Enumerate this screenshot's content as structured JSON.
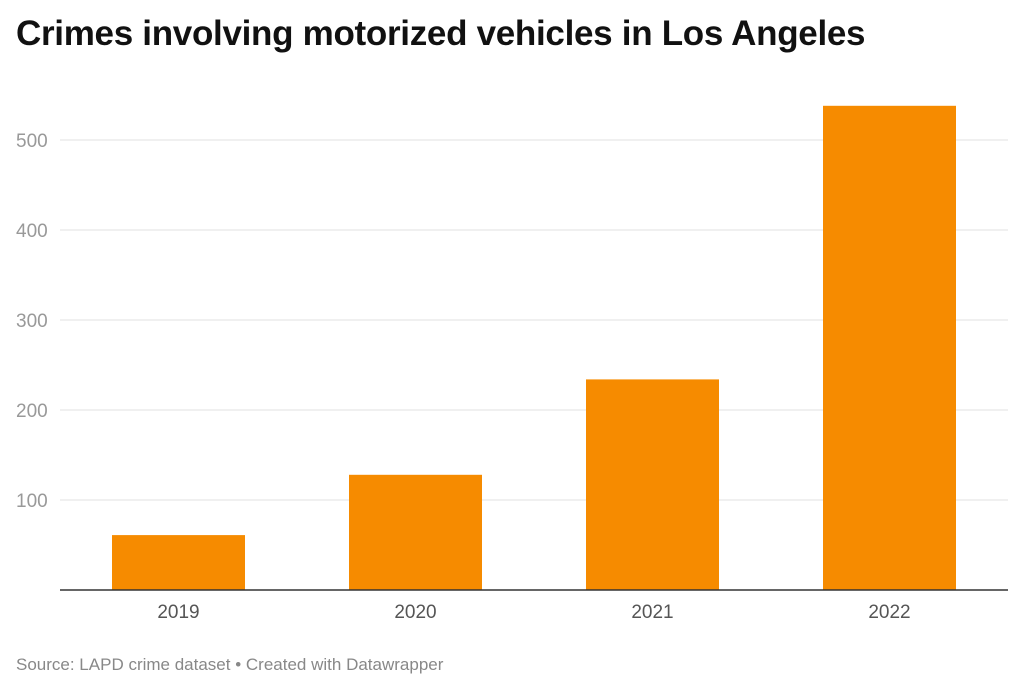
{
  "chart_data": {
    "type": "bar",
    "title": "Crimes involving motorized vehicles in Los Angeles",
    "categories": [
      "2019",
      "2020",
      "2021",
      "2022"
    ],
    "values": [
      61,
      128,
      234,
      538
    ],
    "ylim": [
      0,
      580
    ],
    "yticks": [
      100,
      200,
      300,
      400,
      500
    ],
    "xlabel": "",
    "ylabel": "",
    "grid": true,
    "bar_color": "#f68b00"
  },
  "footer": {
    "source": "Source: LAPD crime dataset",
    "separator": "•",
    "credit": "Created with Datawrapper"
  }
}
